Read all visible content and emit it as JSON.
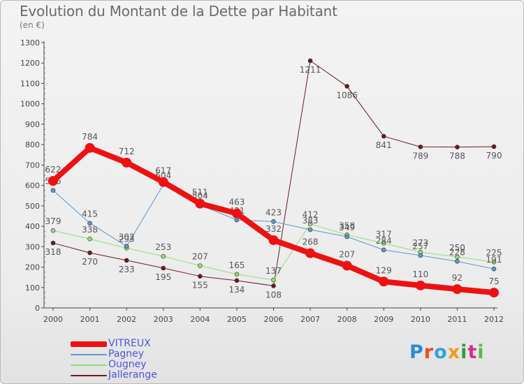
{
  "header": {
    "title": "Evolution du Montant de la Dette par Habitant",
    "unit": "(en €)"
  },
  "logo": {
    "text": "Proxiti",
    "colors": [
      "#2a8bd8",
      "#e84e1b",
      "#2ea3de",
      "#f29a1b",
      "#2e9a3a",
      "#d62d8a",
      "#55b848"
    ]
  },
  "chart_data": {
    "type": "line",
    "title": "Evolution du Montant de la Dette par Habitant",
    "ylabel": "(en €)",
    "xlabel": "",
    "ylim": [
      0,
      1300
    ],
    "yticks": [
      0,
      100,
      200,
      300,
      400,
      500,
      600,
      700,
      800,
      900,
      1000,
      1100,
      1200,
      1300
    ],
    "grid": false,
    "legend_position": "bottom-left",
    "x": [
      "2000",
      "2001",
      "2002",
      "2003",
      "2004",
      "2005",
      "2006",
      "2007",
      "2008",
      "2009",
      "2010",
      "2011",
      "2012"
    ],
    "series": [
      {
        "name": "Jallerange",
        "color": "#6b1a1e",
        "width": 1,
        "labels_below": true,
        "values": [
          318,
          270,
          233,
          195,
          155,
          134,
          108,
          1211,
          1086,
          841,
          789,
          788,
          790
        ]
      },
      {
        "name": "Ougney",
        "color": "#93dd72",
        "width": 1,
        "labels_below": false,
        "values": [
          379,
          338,
          293,
          253,
          207,
          165,
          137,
          412,
          358,
          317,
          273,
          250,
          225
        ]
      },
      {
        "name": "Pagney",
        "color": "#5a98cc",
        "width": 1,
        "labels_below": false,
        "values": [
          576,
          415,
          302,
          604,
          504,
          431,
          423,
          383,
          349,
          284,
          257,
          228,
          191
        ]
      },
      {
        "name": "VITREUX",
        "color": "#ee1111",
        "width": 8,
        "labels_below": false,
        "values": [
          622,
          784,
          712,
          617,
          511,
          463,
          332,
          268,
          207,
          129,
          110,
          92,
          75
        ]
      }
    ]
  }
}
